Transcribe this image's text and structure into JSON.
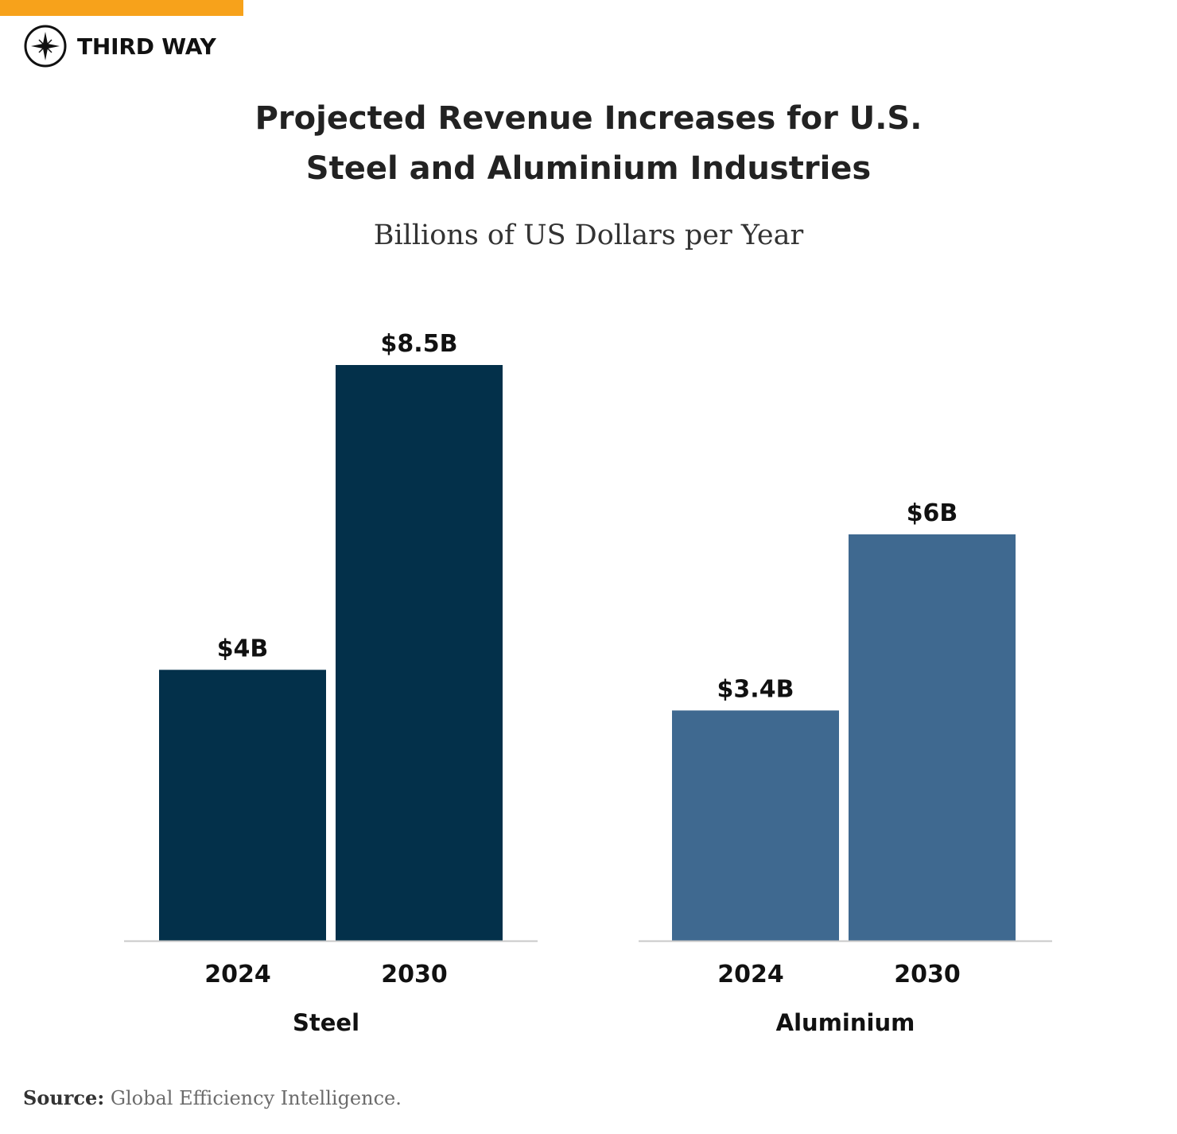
{
  "brand": {
    "name": "THIRD WAY",
    "logo_icon": "compass-star-icon",
    "accent_color": "#f7a21b"
  },
  "title_lines": [
    "Projected Revenue Increases for U.S.",
    "Steel and Aluminium Industries"
  ],
  "source": {
    "label": "Source:",
    "text": "Global Efficiency Intelligence."
  },
  "chart_data": {
    "type": "bar",
    "title": "Projected Revenue Increases for U.S. Steel and Aluminium Industries",
    "subtitle": "Billions of US Dollars per Year",
    "ylabel": "Billions of US Dollars per Year",
    "ylim": [
      0,
      8.5
    ],
    "grid": false,
    "categories": [
      "2024",
      "2030"
    ],
    "groups": [
      {
        "name": "Steel",
        "color": "#03304a",
        "values": [
          4,
          8.5
        ],
        "labels": [
          "$4B",
          "$8.5B"
        ]
      },
      {
        "name": "Aluminium",
        "color": "#3f6990",
        "values": [
          3.4,
          6
        ],
        "labels": [
          "$3.4B",
          "$6B"
        ]
      }
    ]
  }
}
